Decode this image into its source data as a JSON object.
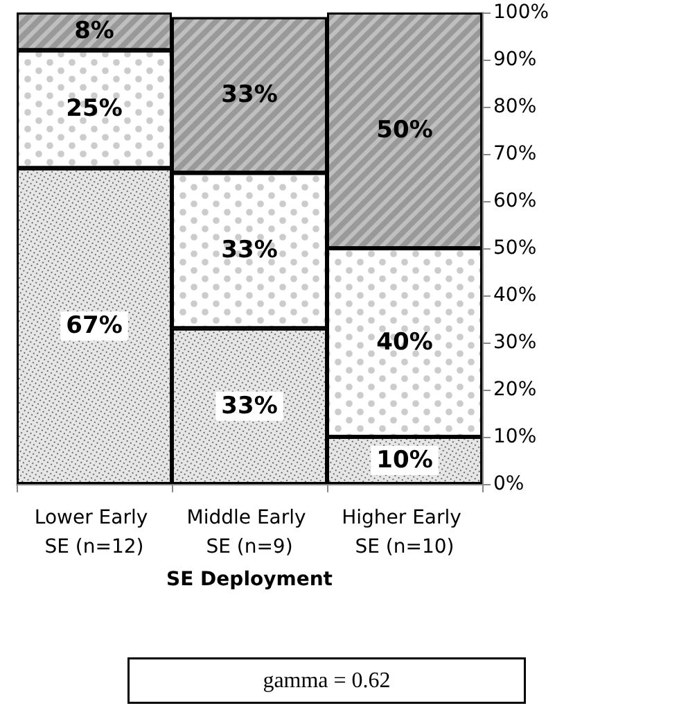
{
  "chart_data": {
    "type": "bar",
    "stacked": true,
    "xlabel": "SE Deployment",
    "categories": [
      "Lower Early SE (n=12)",
      "Middle Early SE (n=9)",
      "Higher Early SE (n=10)"
    ],
    "series": [
      {
        "color": "#e6e6e6",
        "values": [
          67,
          33,
          10
        ],
        "value_labels": [
          "67%",
          "33%",
          "10%"
        ]
      },
      {
        "color": "#ffffff",
        "values": [
          25,
          33,
          40
        ],
        "value_labels": [
          "25%",
          "33%",
          "40%"
        ]
      },
      {
        "color": "#bfbfbf",
        "values": [
          8,
          33,
          50
        ],
        "value_labels": [
          "8%",
          "33%",
          "50%"
        ]
      }
    ],
    "ylim": [
      0,
      100
    ],
    "yticks": [
      {
        "value": 0,
        "label": "0%"
      },
      {
        "value": 10,
        "label": "10%"
      },
      {
        "value": 20,
        "label": "20%"
      },
      {
        "value": 30,
        "label": "30%"
      },
      {
        "value": 40,
        "label": "40%"
      },
      {
        "value": 50,
        "label": "50%"
      },
      {
        "value": 60,
        "label": "60%"
      },
      {
        "value": 70,
        "label": "70%"
      },
      {
        "value": 80,
        "label": "80%"
      },
      {
        "value": 90,
        "label": "90%"
      },
      {
        "value": 100,
        "label": "100%"
      }
    ],
    "grid": false,
    "annotations": [
      "gamma = 0.62"
    ]
  }
}
